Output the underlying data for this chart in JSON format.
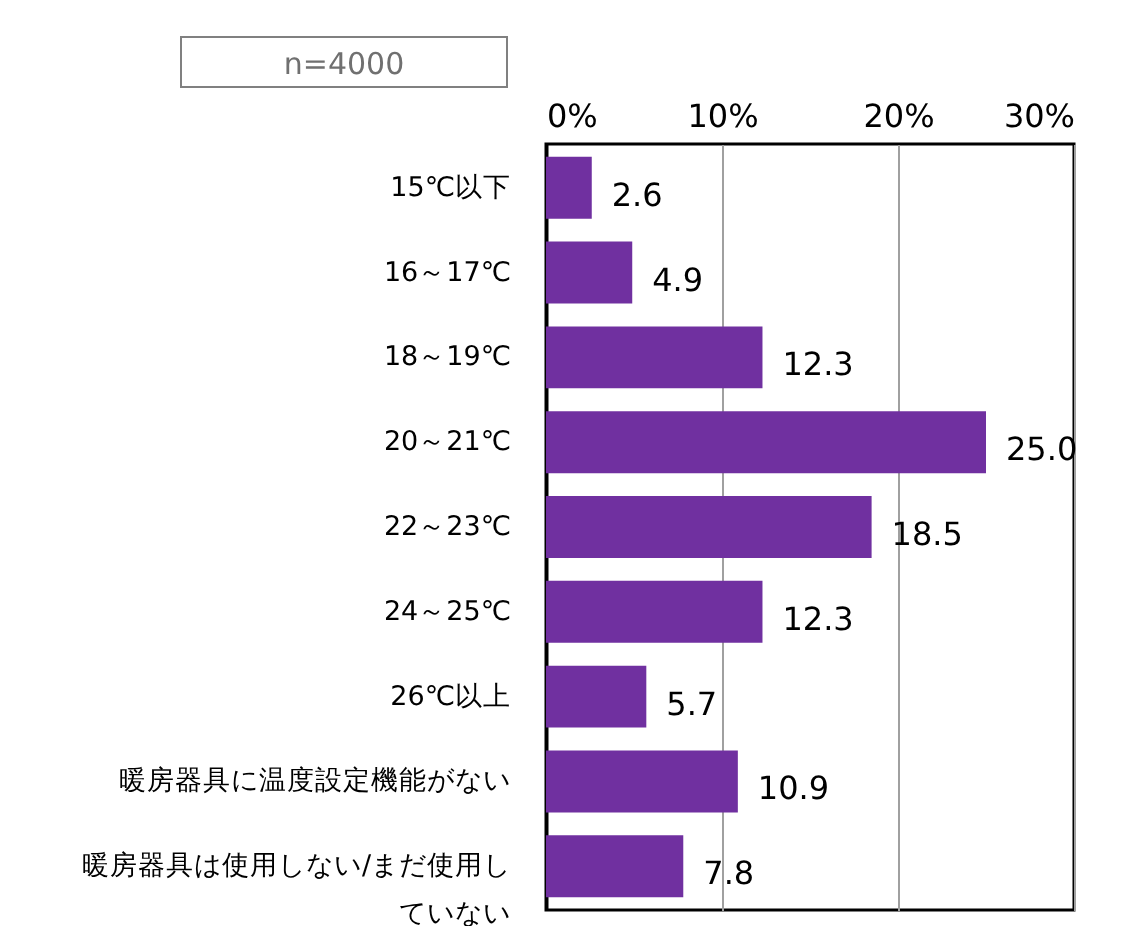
{
  "chart_data": {
    "type": "bar",
    "orientation": "horizontal",
    "categories": [
      "15℃以下",
      "16～17℃",
      "18～19℃",
      "20～21℃",
      "22～23℃",
      "24～25℃",
      "26℃以上",
      "暖房器具に温度設定機能がない",
      "暖房器具は使用しない/まだ使用していない"
    ],
    "values": [
      2.6,
      4.9,
      12.3,
      25.0,
      18.5,
      12.3,
      5.7,
      10.9,
      7.8
    ],
    "value_labels": [
      "2.6",
      "4.9",
      "12.3",
      "25.0",
      "18.5",
      "12.3",
      "5.7",
      "10.9",
      "7.8"
    ],
    "color": "#7030a0",
    "xlim": [
      0,
      30
    ],
    "xticks": [
      {
        "value": 0,
        "label": "0%"
      },
      {
        "value": 10,
        "label": "10%"
      },
      {
        "value": 20,
        "label": "20%"
      },
      {
        "value": 30,
        "label": "30%"
      }
    ],
    "grid": "x",
    "annotations": [
      "n=4000"
    ]
  }
}
